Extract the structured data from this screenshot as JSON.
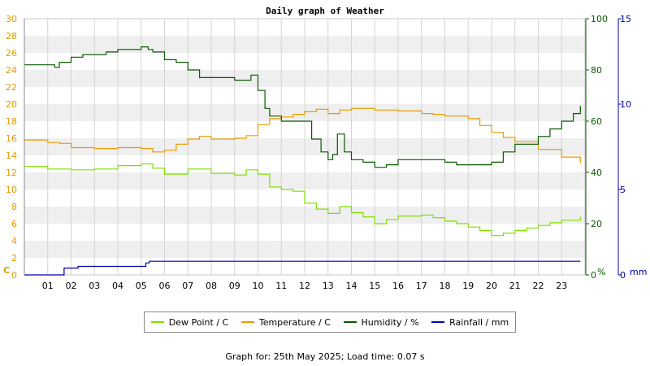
{
  "chart_data": {
    "type": "line",
    "title": "Daily graph of Weather",
    "x_ticks": [
      "01",
      "02",
      "03",
      "04",
      "05",
      "06",
      "07",
      "08",
      "09",
      "10",
      "11",
      "12",
      "13",
      "14",
      "15",
      "16",
      "17",
      "18",
      "19",
      "20",
      "21",
      "22",
      "23"
    ],
    "xlim": [
      0,
      24
    ],
    "axes": {
      "left": {
        "unit": "C",
        "range": [
          0,
          30
        ],
        "ticks": [
          0,
          2,
          4,
          6,
          8,
          10,
          12,
          14,
          16,
          18,
          20,
          22,
          24,
          26,
          28,
          30
        ],
        "color": "#e39a00"
      },
      "right1": {
        "unit": "%",
        "range": [
          0,
          100
        ],
        "ticks": [
          0,
          20,
          40,
          60,
          80,
          100
        ],
        "color": "#0a5a00"
      },
      "right2": {
        "unit": "mm",
        "range": [
          0,
          15
        ],
        "ticks": [
          0,
          5,
          10,
          15
        ],
        "color": "#0000a8"
      }
    },
    "grid": true,
    "legend_position": "bottom",
    "series": [
      {
        "name": "Dew Point / C",
        "axis": "left",
        "color": "#7ee000",
        "x": [
          0,
          1,
          2,
          3,
          4,
          5,
          5.5,
          6,
          7,
          8,
          9,
          9.5,
          10,
          10.5,
          11,
          11.5,
          12,
          12.5,
          13,
          13.5,
          14,
          14.5,
          15,
          15.5,
          16,
          16.5,
          17,
          17.5,
          18,
          18.5,
          19,
          19.5,
          20,
          20.5,
          21,
          21.5,
          22,
          22.5,
          23,
          23.8
        ],
        "y": [
          12.7,
          12.4,
          12.3,
          12.4,
          12.8,
          13.0,
          12.5,
          11.8,
          12.4,
          11.9,
          11.7,
          12.3,
          11.8,
          10.3,
          10.0,
          9.8,
          8.4,
          7.7,
          7.2,
          8.0,
          7.3,
          6.8,
          6.0,
          6.5,
          6.9,
          6.9,
          7.0,
          6.7,
          6.3,
          6.0,
          5.6,
          5.2,
          4.6,
          4.9,
          5.2,
          5.5,
          5.8,
          6.1,
          6.4,
          6.8
        ]
      },
      {
        "name": "Temperature / C",
        "axis": "left",
        "color": "#e89b00",
        "x": [
          0,
          1,
          1.5,
          2,
          3,
          4,
          5,
          5.5,
          6,
          6.5,
          7,
          7.5,
          8,
          9,
          9.5,
          10,
          10.5,
          11,
          11.5,
          12,
          12.5,
          13,
          13.5,
          14,
          15,
          16,
          17,
          17.5,
          18,
          19,
          19.5,
          20,
          20.5,
          21,
          22,
          23,
          23.8
        ],
        "y": [
          15.8,
          15.5,
          15.4,
          14.9,
          14.8,
          14.9,
          14.8,
          14.4,
          14.6,
          15.3,
          15.9,
          16.2,
          15.9,
          16.0,
          16.3,
          17.6,
          18.3,
          18.5,
          18.8,
          19.1,
          19.4,
          18.9,
          19.3,
          19.5,
          19.3,
          19.2,
          18.9,
          18.8,
          18.6,
          18.3,
          17.5,
          16.7,
          16.1,
          15.6,
          14.7,
          13.8,
          13.1
        ]
      },
      {
        "name": "Humidity / %",
        "axis": "right1",
        "color": "#0a5a00",
        "x": [
          0,
          1,
          1.3,
          1.5,
          2,
          2.5,
          3,
          3.5,
          4,
          4.5,
          5,
          5.3,
          5.5,
          6,
          6.5,
          7,
          7.5,
          8,
          8.5,
          9,
          9.5,
          9.7,
          10,
          10.3,
          10.5,
          11,
          11.5,
          12,
          12.3,
          12.7,
          13,
          13.2,
          13.4,
          13.7,
          14,
          14.5,
          15,
          15.5,
          16,
          17,
          18,
          18.5,
          19,
          19.5,
          20,
          20.5,
          21,
          21.5,
          22,
          22.5,
          23,
          23.5,
          23.8
        ],
        "y": [
          82,
          82,
          81,
          83,
          85,
          86,
          86,
          87,
          88,
          88,
          89,
          88,
          87,
          84,
          83,
          80,
          77,
          77,
          77,
          76,
          76,
          78,
          72,
          65,
          62,
          60,
          60,
          60,
          53,
          48,
          45,
          47,
          55,
          48,
          45,
          44,
          42,
          43,
          45,
          45,
          44,
          43,
          43,
          43,
          44,
          48,
          51,
          51,
          54,
          57,
          60,
          63,
          66
        ]
      },
      {
        "name": "Rainfall / mm",
        "axis": "right2",
        "color": "#0000a8",
        "x": [
          0,
          1.6,
          1.7,
          2.2,
          2.3,
          4.3,
          4.4,
          5.1,
          5.2,
          5.25,
          5.35,
          23.8
        ],
        "y": [
          0,
          0,
          0.4,
          0.4,
          0.5,
          0.5,
          0.5,
          0.5,
          0.7,
          0.7,
          0.8,
          0.8
        ]
      }
    ]
  },
  "footer": "Graph for: 25th May 2025; Load time: 0.07 s"
}
